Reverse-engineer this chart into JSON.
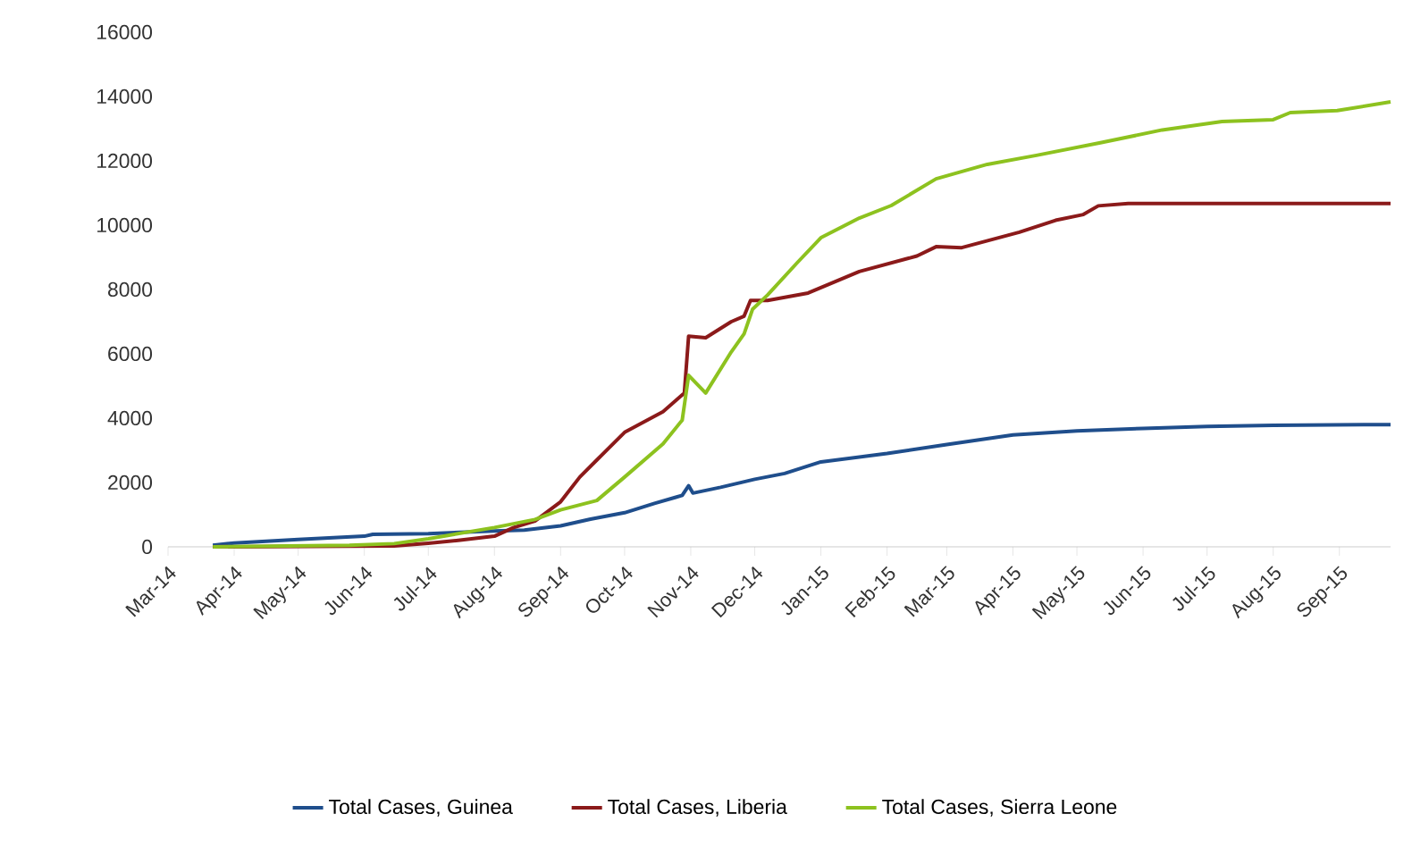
{
  "chart_data": {
    "type": "line",
    "xlim": [
      "2014-03-01",
      "2015-09-25"
    ],
    "ylim": [
      0,
      16000
    ],
    "yticks": [
      0,
      2000,
      4000,
      6000,
      8000,
      10000,
      12000,
      14000,
      16000
    ],
    "xticks": [
      {
        "value": "2014-03-01",
        "label": "Mar-14"
      },
      {
        "value": "2014-04-01",
        "label": "Apr-14"
      },
      {
        "value": "2014-05-01",
        "label": "May-14"
      },
      {
        "value": "2014-06-01",
        "label": "Jun-14"
      },
      {
        "value": "2014-07-01",
        "label": "Jul-14"
      },
      {
        "value": "2014-08-01",
        "label": "Aug-14"
      },
      {
        "value": "2014-09-01",
        "label": "Sep-14"
      },
      {
        "value": "2014-10-01",
        "label": "Oct-14"
      },
      {
        "value": "2014-11-01",
        "label": "Nov-14"
      },
      {
        "value": "2014-12-01",
        "label": "Dec-14"
      },
      {
        "value": "2015-01-01",
        "label": "Jan-15"
      },
      {
        "value": "2015-02-01",
        "label": "Feb-15"
      },
      {
        "value": "2015-03-01",
        "label": "Mar-15"
      },
      {
        "value": "2015-04-01",
        "label": "Apr-15"
      },
      {
        "value": "2015-05-01",
        "label": "May-15"
      },
      {
        "value": "2015-06-01",
        "label": "Jun-15"
      },
      {
        "value": "2015-07-01",
        "label": "Jul-15"
      },
      {
        "value": "2015-08-01",
        "label": "Aug-15"
      },
      {
        "value": "2015-09-01",
        "label": "Sep-15"
      }
    ],
    "grid": false,
    "legend": "bottom",
    "marker": "none",
    "line_style": "solid",
    "series": [
      {
        "name": "Total Cases, Guinea",
        "color": "#1f4e8c",
        "x": [
          "2014-03-22",
          "2014-04-01",
          "2014-05-01",
          "2014-06-01",
          "2014-06-05",
          "2014-07-01",
          "2014-08-01",
          "2014-08-15",
          "2014-09-01",
          "2014-09-15",
          "2014-10-01",
          "2014-10-15",
          "2014-10-25",
          "2014-10-28",
          "2014-10-31",
          "2014-11-02",
          "2014-11-15",
          "2014-12-01",
          "2014-12-15",
          "2015-01-01",
          "2015-02-01",
          "2015-03-01",
          "2015-04-01",
          "2015-05-01",
          "2015-06-01",
          "2015-07-01",
          "2015-08-01",
          "2015-09-25"
        ],
        "values": [
          50,
          120,
          230,
          330,
          390,
          410,
          490,
          520,
          650,
          860,
          1060,
          1350,
          1540,
          1600,
          1900,
          1670,
          1850,
          2100,
          2280,
          2640,
          2900,
          3180,
          3480,
          3600,
          3680,
          3740,
          3780,
          3800
        ]
      },
      {
        "name": "Total Cases, Liberia",
        "color": "#8b1a1a",
        "x": [
          "2014-03-22",
          "2014-06-15",
          "2014-07-01",
          "2014-07-15",
          "2014-08-01",
          "2014-08-10",
          "2014-08-20",
          "2014-09-01",
          "2014-09-10",
          "2014-09-18",
          "2014-10-01",
          "2014-10-19",
          "2014-10-29",
          "2014-10-31",
          "2014-11-08",
          "2014-11-20",
          "2014-11-26",
          "2014-11-29",
          "2014-12-07",
          "2014-12-26",
          "2015-01-19",
          "2015-02-15",
          "2015-02-24",
          "2015-03-08",
          "2015-04-04",
          "2015-04-21",
          "2015-05-04",
          "2015-05-11",
          "2015-05-25",
          "2015-09-25"
        ],
        "values": [
          0,
          30,
          110,
          200,
          330,
          600,
          800,
          1400,
          2170,
          2700,
          3560,
          4200,
          4780,
          6550,
          6500,
          7000,
          7170,
          7660,
          7660,
          7890,
          8560,
          9040,
          9330,
          9300,
          9780,
          10150,
          10330,
          10600,
          10670,
          10670
        ]
      },
      {
        "name": "Total Cases, Sierra Leone",
        "color": "#8dc21f",
        "x": [
          "2014-03-22",
          "2014-05-25",
          "2014-06-15",
          "2014-07-01",
          "2014-08-01",
          "2014-08-20",
          "2014-09-01",
          "2014-09-18",
          "2014-10-01",
          "2014-10-19",
          "2014-10-28",
          "2014-10-31",
          "2014-11-08",
          "2014-11-20",
          "2014-11-26",
          "2014-11-30",
          "2014-12-07",
          "2014-12-21",
          "2015-01-01",
          "2015-01-19",
          "2015-02-03",
          "2015-02-24",
          "2015-03-20",
          "2015-04-12",
          "2015-05-12",
          "2015-06-10",
          "2015-07-08",
          "2015-08-01",
          "2015-08-09",
          "2015-08-31",
          "2015-09-25"
        ],
        "values": [
          0,
          50,
          100,
          250,
          600,
          850,
          1150,
          1440,
          2170,
          3200,
          3940,
          5330,
          4780,
          6060,
          6620,
          7390,
          7830,
          8840,
          9610,
          10220,
          10610,
          11440,
          11890,
          12170,
          12560,
          12960,
          13220,
          13280,
          13500,
          13560,
          13830
        ]
      }
    ]
  }
}
